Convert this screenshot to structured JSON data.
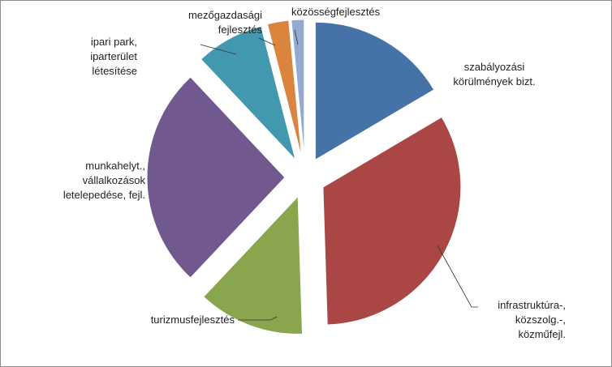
{
  "chart_data": {
    "type": "pie",
    "title": "",
    "exploded": true,
    "legend": "none",
    "slices": [
      {
        "label": [
          "szabályozási",
          "körülmények bizt."
        ],
        "value": 16.5,
        "color": "#4572a7"
      },
      {
        "label": [
          "infrastruktúra-,",
          "közszolg.-,",
          "közműfejl."
        ],
        "value": 33.0,
        "color": "#aa4643"
      },
      {
        "label": [
          "turizmusfejlesztés"
        ],
        "value": 12.5,
        "color": "#89a54e"
      },
      {
        "label": [
          "munkahelyt.,",
          "vállalkozások",
          "letelepedése, fejl."
        ],
        "value": 26.0,
        "color": "#71588f"
      },
      {
        "label": [
          "ipari park,",
          "iparterület",
          "létesítése"
        ],
        "value": 8.0,
        "color": "#4198af"
      },
      {
        "label": [
          "mezőgazdasági",
          "fejlesztés"
        ],
        "value": 2.5,
        "color": "#db843d"
      },
      {
        "label": [
          "közösségfejlesztés"
        ],
        "value": 1.5,
        "color": "#93a9cf"
      }
    ]
  }
}
